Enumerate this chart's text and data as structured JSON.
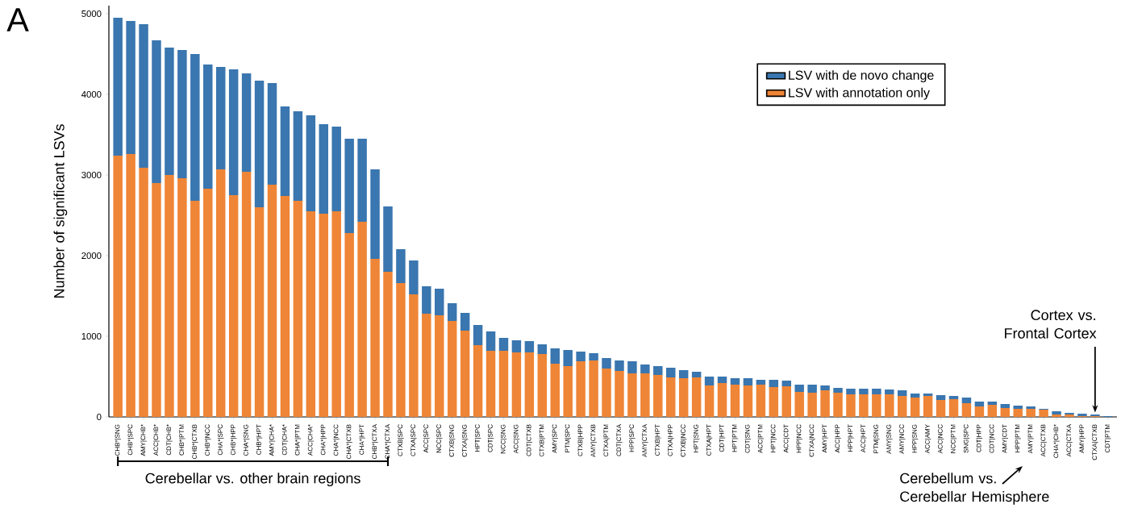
{
  "chart_data": {
    "type": "bar",
    "stacked": true,
    "ylabel": "Number of significant LSVs",
    "categories": [
      "CHB*|SNG",
      "CHB*|SPC",
      "AMY|CHB*",
      "ACC|CHB*",
      "CDT|CHB*",
      "CHB*|PTM",
      "CHB*|CTXB",
      "CHB*|NCC",
      "CHA*|SPC",
      "CHB*|HPP",
      "CHA*|SNG",
      "CHB*|HPT",
      "AMY|CHA*",
      "CDT|CHA*",
      "CHA*|PTM",
      "ACC|CHA*",
      "CHA*|HPP",
      "CHA*|NCC",
      "CHA*|CTXB",
      "CHA*|HPT",
      "CHB*|CTXA",
      "CHA*|CTXA",
      "CTXB|SPC",
      "CTXA|SPC",
      "ACC|SPC",
      "NCC|SPC",
      "CTXB|SNG",
      "CTXA|SNG",
      "HPT|SPC",
      "CDT|SPC",
      "NCC|SNG",
      "ACC|SNG",
      "CDT|CTXB",
      "CTXB|PTM",
      "AMY|SPC",
      "PTM|SPC",
      "CTXB|HPP",
      "AMY|CTXB",
      "CTXA|PTM",
      "CDT|CTXA",
      "HPP|SPC",
      "AMY|CTXA",
      "CTXB|HPT",
      "CTXA|HPP",
      "CTXB|NCC",
      "HPT|SNG",
      "CTXA|HPT",
      "CDT|HPT",
      "HPT|PTM",
      "CDT|SNG",
      "ACC|PTM",
      "HPT|NCC",
      "ACC|CDT",
      "HPP|NCC",
      "CTXA|NCC",
      "AMY|HPT",
      "ACC|HPP",
      "HPP|HPT",
      "ACC|HPT",
      "PTM|SNG",
      "AMY|SNG",
      "AMY|NCC",
      "HPP|SNG",
      "ACC|AMY",
      "ACC|NCC",
      "NCC|PTM",
      "SNG|SPC",
      "CDT|HPP",
      "CDT|NCC",
      "AMY|CDT",
      "HPP|PTM",
      "AMY|PTM",
      "ACC|CTXB",
      "CHA*|CHB*",
      "ACC|CTXA",
      "AMY|HPP",
      "CTXA|CTXB",
      "CDT|PTM"
    ],
    "series": [
      {
        "name": "LSV with annotation only",
        "color": "#ef8536",
        "values": [
          3240,
          3260,
          3090,
          2900,
          3000,
          2960,
          2680,
          2830,
          3070,
          2750,
          3040,
          2600,
          2880,
          2740,
          2680,
          2550,
          2520,
          2550,
          2280,
          2420,
          1960,
          1800,
          1660,
          1520,
          1280,
          1260,
          1190,
          1070,
          890,
          820,
          820,
          800,
          800,
          780,
          660,
          630,
          690,
          700,
          600,
          570,
          540,
          540,
          520,
          490,
          480,
          490,
          390,
          420,
          400,
          390,
          400,
          370,
          380,
          310,
          300,
          330,
          300,
          280,
          280,
          280,
          280,
          260,
          240,
          260,
          210,
          220,
          170,
          130,
          150,
          110,
          100,
          100,
          90,
          30,
          30,
          10,
          10,
          null
        ]
      },
      {
        "name": "LSV with de novo change",
        "color": "#3a76af",
        "values": [
          1710,
          1650,
          1780,
          1770,
          1580,
          1590,
          1820,
          1540,
          1270,
          1560,
          1220,
          1570,
          1260,
          1110,
          1110,
          1190,
          1110,
          1050,
          1170,
          1030,
          1110,
          810,
          420,
          420,
          340,
          330,
          220,
          220,
          250,
          240,
          160,
          150,
          140,
          120,
          190,
          200,
          120,
          90,
          130,
          130,
          150,
          110,
          110,
          120,
          100,
          70,
          110,
          80,
          80,
          90,
          60,
          90,
          70,
          90,
          100,
          60,
          60,
          70,
          70,
          70,
          60,
          70,
          50,
          30,
          60,
          40,
          70,
          60,
          40,
          50,
          40,
          30,
          10,
          40,
          20,
          30,
          20,
          10
        ]
      }
    ],
    "ylim": [
      0,
      5100
    ],
    "yticks": [
      0,
      1000,
      2000,
      3000,
      4000,
      5000
    ],
    "legend": "top right",
    "annotations": [
      "A",
      "Cerebellar vs. other brain regions",
      "Cerebellum vs. Cerebellar Hemisphere",
      {
        "text": "Cortex vs. Frontal Cortex",
        "x": "CTXA|CTXB",
        "y": 27
      }
    ]
  }
}
